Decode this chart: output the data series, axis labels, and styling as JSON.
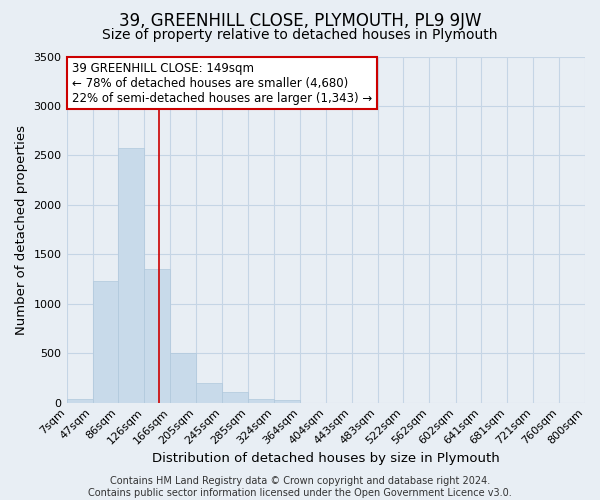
{
  "title": "39, GREENHILL CLOSE, PLYMOUTH, PL9 9JW",
  "subtitle": "Size of property relative to detached houses in Plymouth",
  "xlabel": "Distribution of detached houses by size in Plymouth",
  "ylabel": "Number of detached properties",
  "bar_color": "#c8daea",
  "bar_edge_color": "#b0c8dc",
  "bar_values": [
    40,
    1230,
    2570,
    1350,
    500,
    195,
    110,
    40,
    30,
    0,
    0,
    0,
    0,
    0,
    0,
    0,
    0,
    0,
    0,
    0
  ],
  "bin_labels": [
    "7sqm",
    "47sqm",
    "86sqm",
    "126sqm",
    "166sqm",
    "205sqm",
    "245sqm",
    "285sqm",
    "324sqm",
    "364sqm",
    "404sqm",
    "443sqm",
    "483sqm",
    "522sqm",
    "562sqm",
    "602sqm",
    "641sqm",
    "681sqm",
    "721sqm",
    "760sqm",
    "800sqm"
  ],
  "ylim": [
    0,
    3500
  ],
  "yticks": [
    0,
    500,
    1000,
    1500,
    2000,
    2500,
    3000,
    3500
  ],
  "property_line_x": 149,
  "bin_edges_values": [
    7,
    47,
    86,
    126,
    166,
    205,
    245,
    285,
    324,
    364,
    404,
    443,
    483,
    522,
    562,
    602,
    641,
    681,
    721,
    760,
    800
  ],
  "annotation_title": "39 GREENHILL CLOSE: 149sqm",
  "annotation_line1": "← 78% of detached houses are smaller (4,680)",
  "annotation_line2": "22% of semi-detached houses are larger (1,343) →",
  "annotation_box_color": "#ffffff",
  "annotation_box_edge": "#cc0000",
  "footer_line1": "Contains HM Land Registry data © Crown copyright and database right 2024.",
  "footer_line2": "Contains public sector information licensed under the Open Government Licence v3.0.",
  "background_color": "#e8eef4",
  "plot_bg_color": "#e8eef4",
  "grid_color": "#c5d5e5",
  "title_fontsize": 12,
  "subtitle_fontsize": 10,
  "axis_label_fontsize": 9.5,
  "tick_fontsize": 8,
  "footer_fontsize": 7
}
